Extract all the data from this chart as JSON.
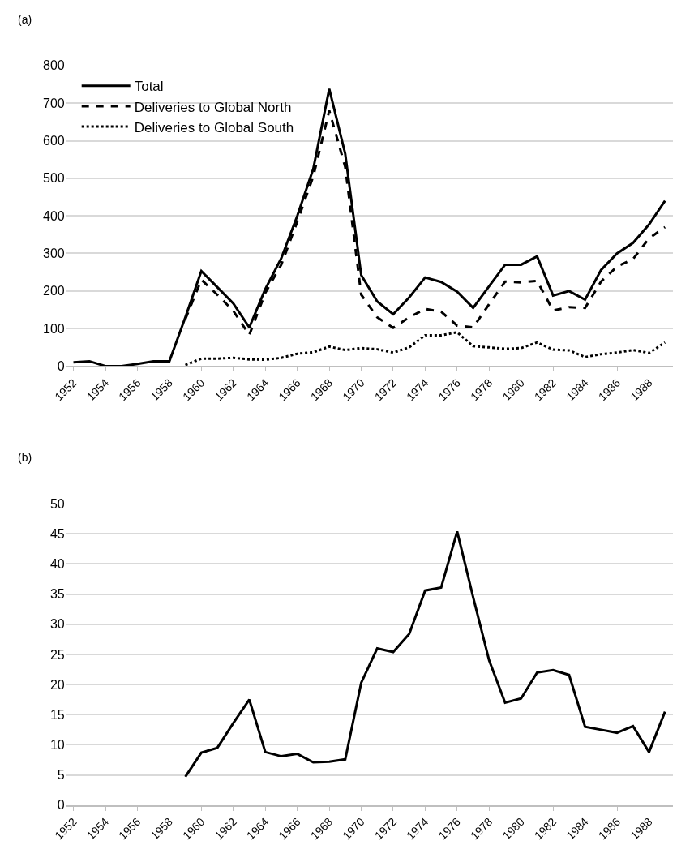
{
  "chart_data": [
    {
      "type": "line",
      "title": "(a)",
      "categories": [
        "1952",
        null,
        "1954",
        null,
        "1956",
        null,
        "1958",
        null,
        "1960",
        null,
        "1962",
        null,
        "1964",
        null,
        "1966",
        null,
        "1968",
        null,
        "1970",
        null,
        "1972",
        null,
        "1974",
        null,
        "1976",
        null,
        "1978",
        null,
        "1980",
        null,
        "1982",
        null,
        "1984",
        null,
        "1986",
        null,
        "1988",
        null
      ],
      "series": [
        {
          "name": "Total",
          "color": "#000000",
          "line_style": "solid",
          "values": [
            10,
            13,
            0,
            0,
            6,
            13,
            13,
            130,
            253,
            210,
            167,
            103,
            205,
            287,
            400,
            525,
            738,
            565,
            242,
            172,
            138,
            183,
            236,
            224,
            198,
            155,
            213,
            270,
            270,
            292,
            188,
            200,
            177,
            256,
            300,
            328,
            377,
            440
          ]
        },
        {
          "name": "Deliveries to Global North",
          "color": "#000000",
          "line_style": "dashed",
          "values": [
            null,
            null,
            null,
            null,
            null,
            null,
            null,
            125,
            230,
            190,
            147,
            83,
            195,
            270,
            385,
            505,
            680,
            530,
            190,
            130,
            102,
            130,
            152,
            145,
            108,
            103,
            165,
            225,
            223,
            227,
            148,
            157,
            155,
            225,
            265,
            285,
            340,
            370
          ]
        },
        {
          "name": "Deliveries to Global South",
          "color": "#000000",
          "line_style": "dotted",
          "values": [
            null,
            null,
            null,
            null,
            null,
            null,
            null,
            3,
            20,
            20,
            22,
            18,
            17,
            22,
            33,
            37,
            52,
            43,
            48,
            45,
            36,
            50,
            82,
            82,
            90,
            53,
            50,
            46,
            48,
            63,
            44,
            42,
            24,
            32,
            36,
            43,
            35,
            63
          ]
        }
      ],
      "ylim": [
        0,
        800
      ],
      "yticks": [
        0,
        100,
        200,
        300,
        400,
        500,
        600,
        700,
        800
      ],
      "grid": "y",
      "legend": "top left"
    },
    {
      "type": "line",
      "title": "(b)",
      "categories": [
        "1952",
        null,
        "1954",
        null,
        "1956",
        null,
        "1958",
        null,
        "1960",
        null,
        "1962",
        null,
        "1964",
        null,
        "1966",
        null,
        "1968",
        null,
        "1970",
        null,
        "1972",
        null,
        "1974",
        null,
        "1976",
        null,
        "1978",
        null,
        "1980",
        null,
        "1982",
        null,
        "1984",
        null,
        "1986",
        null,
        "1988",
        null
      ],
      "series": [
        {
          "color": "#000000",
          "line_style": "solid",
          "values": [
            null,
            null,
            null,
            null,
            null,
            null,
            null,
            4.7,
            8.7,
            9.5,
            13.6,
            17.5,
            8.8,
            8.1,
            8.5,
            7.1,
            7.2,
            7.6,
            20.3,
            26,
            25.4,
            28.4,
            35.6,
            36.1,
            45.4,
            34.5,
            24,
            17,
            17.7,
            22,
            22.4,
            21.6,
            13,
            12.5,
            12,
            13.1,
            8.8,
            15.5
          ]
        }
      ],
      "ylim": [
        0,
        50
      ],
      "yticks": [
        0,
        5,
        10,
        15,
        20,
        25,
        30,
        35,
        40,
        45,
        50
      ],
      "grid": "y",
      "legend": false
    }
  ]
}
